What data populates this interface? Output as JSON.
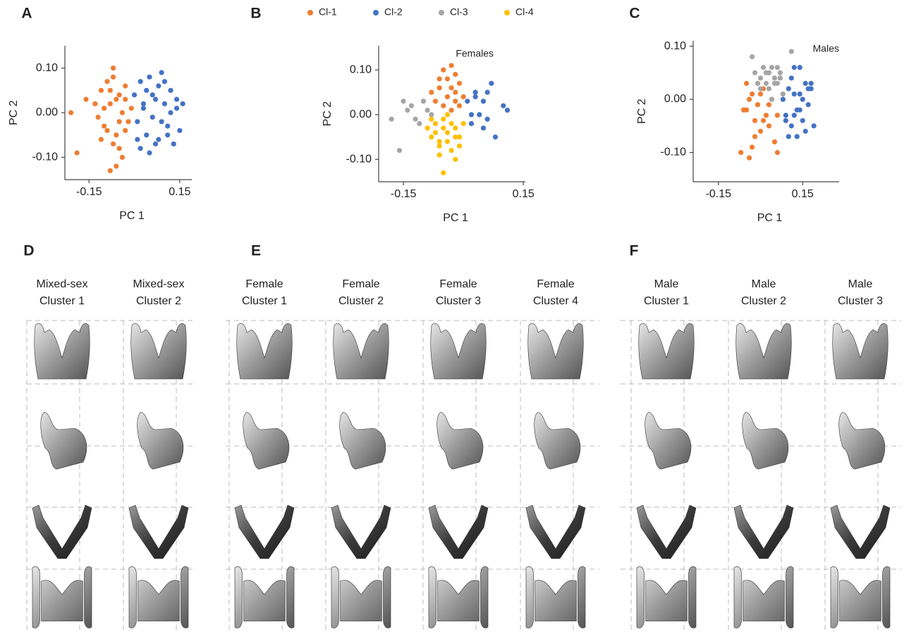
{
  "chart_data": [
    {
      "type": "scatter",
      "panel_label": "A",
      "xlabel": "PC 1",
      "ylabel": "PC 2",
      "xlim": [
        -0.23,
        0.19
      ],
      "ylim": [
        -0.15,
        0.15
      ],
      "xticks": [
        -0.15,
        0.15
      ],
      "yticks": [
        {
          "value": -0.1,
          "label": "-0.10"
        },
        {
          "value": 0,
          "label": "0.00"
        },
        {
          "value": 0.1,
          "label": "0.10"
        }
      ],
      "series": [
        {
          "color": "#ee7d31",
          "x": [
            -0.21,
            -0.19,
            -0.16,
            -0.13,
            -0.12,
            -0.11,
            -0.1,
            -0.09,
            -0.08,
            -0.07,
            -0.06,
            -0.05,
            -0.04,
            -0.03,
            -0.02,
            -0.01,
            -0.11,
            -0.09,
            -0.07,
            -0.05,
            -0.03,
            -0.08,
            -0.06,
            -0.04,
            -0.1,
            -0.06,
            -0.05,
            -0.08,
            -0.03,
            -0.07
          ],
          "values": [
            0.0,
            -0.09,
            0.03,
            0.02,
            -0.01,
            0.05,
            -0.03,
            0.07,
            0.02,
            0.1,
            -0.05,
            0.04,
            0.0,
            0.06,
            -0.02,
            0.01,
            -0.06,
            -0.04,
            0.08,
            -0.08,
            -0.04,
            -0.13,
            -0.12,
            -0.1,
            0.01,
            0.03,
            -0.02,
            0.05,
            0.03,
            -0.07
          ]
        },
        {
          "color": "#4472c4",
          "x": [
            0.0,
            0.01,
            0.02,
            0.03,
            0.04,
            0.05,
            0.06,
            0.07,
            0.08,
            0.09,
            0.1,
            0.11,
            0.12,
            0.13,
            0.14,
            0.15,
            0.16,
            0.02,
            0.05,
            0.08,
            0.11,
            0.14,
            0.03,
            0.06,
            0.09,
            0.12,
            0.07,
            0.04,
            0.1,
            0.01
          ],
          "values": [
            0.04,
            -0.02,
            0.07,
            0.01,
            -0.05,
            0.08,
            -0.01,
            0.03,
            -0.06,
            0.09,
            0.02,
            -0.03,
            0.05,
            -0.07,
            0.01,
            -0.04,
            0.02,
            -0.08,
            -0.09,
            0.06,
            -0.05,
            0.03,
            0.02,
            0.04,
            -0.02,
            0.0,
            -0.07,
            0.05,
            0.07,
            -0.06
          ]
        }
      ]
    },
    {
      "type": "scatter",
      "panel_label": "B",
      "xlabel": "PC 1",
      "ylabel": "PC 2",
      "annotation": "Females",
      "xlim": [
        -0.212,
        0.155
      ],
      "ylim": [
        -0.15,
        0.154
      ],
      "xticks": [
        -0.15,
        0.15
      ],
      "yticks": [
        {
          "value": -0.1,
          "label": "-0.10"
        },
        {
          "value": 0,
          "label": "0.00"
        },
        {
          "value": 0.1,
          "label": "0.10"
        }
      ],
      "series": [
        {
          "name": "Cl-1",
          "color": "#ee7d31",
          "x": [
            -0.06,
            -0.05,
            -0.04,
            -0.03,
            -0.02,
            -0.01,
            0.0,
            -0.07,
            -0.05,
            -0.03,
            -0.02,
            -0.04,
            -0.06,
            -0.01,
            -0.03,
            -0.08,
            -0.02
          ],
          "values": [
            0.06,
            0.1,
            0.08,
            0.11,
            0.05,
            0.07,
            0.04,
            0.03,
            0.02,
            0.06,
            0.09,
            0.04,
            0.08,
            0.02,
            0.01,
            0.05,
            0.03
          ]
        },
        {
          "name": "Cl-2",
          "color": "#4472c4",
          "x": [
            0.01,
            0.02,
            0.03,
            0.04,
            0.05,
            0.06,
            0.07,
            0.08,
            0.1,
            0.11,
            0.03,
            0.06,
            0.02,
            0.05
          ],
          "values": [
            0.03,
            -0.02,
            0.05,
            0.0,
            0.03,
            -0.01,
            0.07,
            -0.05,
            0.02,
            0.01,
            0.04,
            0.05,
            0.0,
            -0.03
          ]
        },
        {
          "name": "Cl-3",
          "color": "#a5a5a5",
          "x": [
            -0.18,
            -0.16,
            -0.15,
            -0.14,
            -0.13,
            -0.12,
            -0.11,
            -0.1,
            -0.09,
            -0.08
          ],
          "values": [
            -0.01,
            -0.08,
            0.03,
            0.01,
            0.02,
            -0.01,
            -0.02,
            0.03,
            0.01,
            0.0
          ]
        },
        {
          "name": "Cl-4",
          "color": "#fec000",
          "x": [
            -0.09,
            -0.08,
            -0.07,
            -0.06,
            -0.05,
            -0.04,
            -0.03,
            -0.02,
            -0.01,
            0.0,
            -0.08,
            -0.06,
            -0.04,
            -0.02,
            -0.07,
            -0.05,
            -0.03,
            -0.01,
            -0.05,
            -0.06,
            -0.04,
            -0.02
          ],
          "values": [
            -0.03,
            -0.05,
            -0.02,
            -0.07,
            -0.01,
            -0.04,
            -0.08,
            -0.03,
            -0.05,
            -0.02,
            -0.01,
            -0.09,
            -0.06,
            -0.1,
            -0.04,
            -0.13,
            -0.02,
            -0.07,
            -0.03,
            -0.06,
            0.0,
            -0.05
          ]
        }
      ]
    },
    {
      "type": "scatter",
      "panel_label": "C",
      "xlabel": "PC 1",
      "ylabel": "PC 2",
      "annotation": "Males",
      "xlim": [
        -0.24,
        0.28
      ],
      "ylim": [
        -0.155,
        0.11
      ],
      "xticks": [
        -0.15,
        0.15
      ],
      "yticks": [
        {
          "value": -0.1,
          "label": "-0.10"
        },
        {
          "value": 0,
          "label": "0.00"
        },
        {
          "value": 0.1,
          "label": "0.10"
        }
      ],
      "series": [
        {
          "color": "#ee7d31",
          "x": [
            -0.07,
            -0.06,
            -0.05,
            -0.04,
            -0.03,
            -0.02,
            -0.01,
            0.0,
            0.01,
            0.02,
            0.03,
            0.04,
            0.05,
            0.06,
            -0.05,
            -0.03,
            -0.01,
            0.01,
            0.03,
            -0.04,
            -0.02,
            0.0,
            0.06,
            -0.06
          ],
          "values": [
            -0.1,
            -0.02,
            0.03,
            -0.11,
            0.01,
            -0.04,
            -0.01,
            -0.06,
            0.02,
            -0.03,
            -0.05,
            0.0,
            -0.08,
            -0.1,
            -0.02,
            -0.09,
            0.03,
            -0.04,
            -0.01,
            0.0,
            -0.07,
            0.01,
            -0.03,
            -0.02
          ]
        },
        {
          "color": "#a5a5a5",
          "x": [
            -0.03,
            -0.02,
            -0.01,
            0.0,
            0.01,
            0.02,
            0.03,
            0.04,
            0.05,
            0.06,
            0.07,
            0.08,
            0.11,
            0.02,
            0.04,
            0.06,
            0.0,
            0.03,
            0.05,
            0.07
          ],
          "values": [
            0.08,
            0.05,
            0.03,
            0.04,
            0.06,
            0.05,
            0.02,
            0.06,
            0.04,
            0.03,
            0.05,
            0.01,
            0.09,
            0.03,
            0.0,
            0.06,
            0.02,
            0.05,
            0.03,
            0.04
          ]
        },
        {
          "color": "#4472c4",
          "x": [
            0.08,
            0.09,
            0.1,
            0.11,
            0.12,
            0.13,
            0.14,
            0.15,
            0.16,
            0.17,
            0.18,
            0.19,
            0.1,
            0.12,
            0.14,
            0.16,
            0.18,
            0.09,
            0.11,
            0.13,
            0.15,
            0.17,
            0.12,
            0.14
          ],
          "values": [
            0.0,
            -0.03,
            0.02,
            -0.05,
            0.01,
            -0.02,
            0.06,
            -0.04,
            0.03,
            -0.01,
            0.02,
            -0.05,
            -0.07,
            -0.03,
            0.01,
            -0.06,
            0.03,
            -0.04,
            0.04,
            -0.07,
            0.0,
            0.02,
            0.06,
            -0.02
          ]
        }
      ]
    }
  ],
  "renders": {
    "panels": [
      {
        "label": "D",
        "columns": [
          [
            "Mixed-sex",
            "Cluster 1"
          ],
          [
            "Mixed-sex",
            "Cluster 2"
          ]
        ]
      },
      {
        "label": "E",
        "columns": [
          [
            "Female",
            "Cluster 1"
          ],
          [
            "Female",
            "Cluster 2"
          ],
          [
            "Female",
            "Cluster 3"
          ],
          [
            "Female",
            "Cluster 4"
          ]
        ]
      },
      {
        "label": "F",
        "columns": [
          [
            "Male",
            "Cluster 1"
          ],
          [
            "Male",
            "Cluster 2"
          ],
          [
            "Male",
            "Cluster 3"
          ]
        ]
      }
    ]
  }
}
